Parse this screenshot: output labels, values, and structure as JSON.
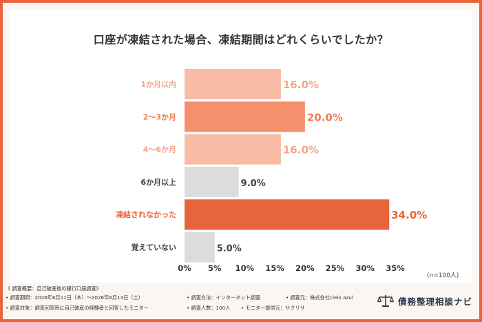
{
  "title": "口座が凍結された場合、凍結期間はどれくらいでしたか？",
  "sample_note": "(n=100人)",
  "chart_data": {
    "type": "bar",
    "orientation": "horizontal",
    "title": "口座が凍結された場合、凍結期間はどれくらいでしたか？",
    "categories": [
      "1か月以内",
      "2〜3か月",
      "4〜6か月",
      "6か月以上",
      "凍結されなかった",
      "覚えていない"
    ],
    "values": [
      16.0,
      20.0,
      16.0,
      9.0,
      34.0,
      5.0
    ],
    "value_labels": [
      "16.0%",
      "20.0%",
      "16.0%",
      "9.0%",
      "34.0%",
      "5.0%"
    ],
    "bar_colors": [
      "#f8bba3",
      "#f4906c",
      "#f8bba3",
      "#dcdcdc",
      "#e8643a",
      "#dcdcdc"
    ],
    "label_colors": [
      "#f4a688",
      "#ef7e54",
      "#f4a688",
      "#444444",
      "#e8643a",
      "#444444"
    ],
    "xticks": [
      "0%",
      "5%",
      "10%",
      "15%",
      "20%",
      "25%",
      "30%",
      "35%"
    ],
    "xlim": [
      0,
      35
    ],
    "grid": false,
    "legend": "none"
  },
  "footer": {
    "heading": "《 調査概要：自己破産後の銀行口座調査》",
    "row1": [
      "調査期間：2026年6月11日（木）～2026年6月13日（土）",
      "調査方法：インターネット調査",
      "調査元：株式会社cielo azul"
    ],
    "row2": [
      "調査対象：調査回答時に自己破産の経験者と回答したモニター",
      "調査人数：100人",
      "モニター提供元：サクリサ"
    ],
    "bullet": "•",
    "logo_text": "債務整理相談ナビ"
  },
  "colors": {
    "accent": "#e8643a",
    "border": "#e8643a",
    "logo": "#2a3550"
  }
}
